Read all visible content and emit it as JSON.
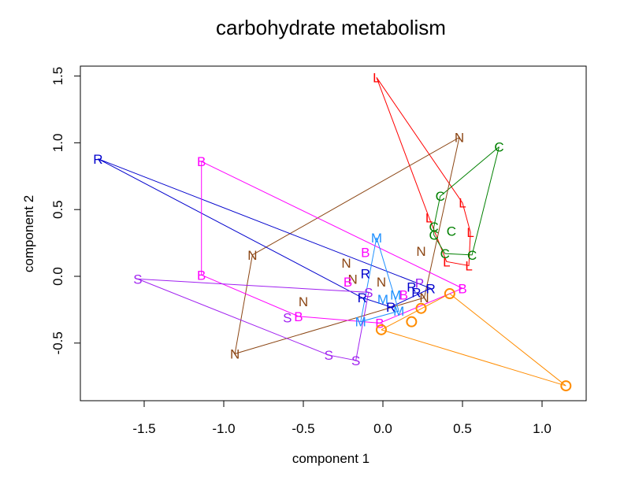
{
  "chart_data": {
    "type": "scatter",
    "title": "carbohydrate metabolism",
    "xlabel": "component 1",
    "ylabel": "component 2",
    "xlim": [
      -1.9,
      1.3
    ],
    "ylim": [
      -0.95,
      1.58
    ],
    "xticks": [
      -1.5,
      -1.0,
      -0.5,
      0.0,
      0.5,
      1.0
    ],
    "xtick_labels": [
      "-1.5",
      "-1.0",
      "-0.5",
      "0.0",
      "0.5",
      "1.0"
    ],
    "yticks": [
      -0.5,
      0.0,
      0.5,
      1.0,
      1.5
    ],
    "ytick_labels": [
      "-0.5",
      "0.0",
      "0.5",
      "1.0",
      "1.5"
    ],
    "grid": false,
    "legend": "none",
    "series": [
      {
        "name": "L",
        "marker": "L",
        "color": "#ff0000",
        "points": [
          [
            -0.04,
            1.49
          ],
          [
            0.5,
            0.55
          ],
          [
            0.55,
            0.33
          ],
          [
            0.54,
            0.08
          ],
          [
            0.4,
            0.11
          ],
          [
            0.29,
            0.44
          ]
        ],
        "path_order": [
          0,
          1,
          2,
          3,
          4,
          5,
          0
        ]
      },
      {
        "name": "C",
        "marker": "C",
        "color": "#008000",
        "points": [
          [
            0.73,
            0.97
          ],
          [
            0.36,
            0.6
          ],
          [
            0.32,
            0.37
          ],
          [
            0.32,
            0.31
          ],
          [
            0.39,
            0.17
          ],
          [
            0.56,
            0.16
          ],
          [
            0.43,
            0.34
          ]
        ],
        "path_order": [
          0,
          1,
          2,
          3,
          4,
          5,
          0
        ]
      },
      {
        "name": "N",
        "marker": "N",
        "color": "#8b4513",
        "points": [
          [
            0.48,
            1.04
          ],
          [
            -0.82,
            0.16
          ],
          [
            -0.93,
            -0.58
          ],
          [
            -0.5,
            -0.19
          ],
          [
            -0.23,
            0.1
          ],
          [
            -0.19,
            -0.02
          ],
          [
            -0.01,
            -0.04
          ],
          [
            0.24,
            0.19
          ],
          [
            0.26,
            -0.16
          ]
        ],
        "path_order": [
          8,
          0,
          1,
          2,
          8
        ]
      },
      {
        "name": "R",
        "marker": "R",
        "color": "#0000cd",
        "points": [
          [
            -1.79,
            0.88
          ],
          [
            -0.11,
            0.02
          ],
          [
            -0.13,
            -0.16
          ],
          [
            0.05,
            -0.23
          ],
          [
            0.18,
            -0.08
          ],
          [
            0.3,
            -0.09
          ],
          [
            0.21,
            -0.12
          ]
        ],
        "path_order": [
          0,
          5,
          3,
          2,
          0
        ]
      },
      {
        "name": "B",
        "marker": "B",
        "color": "#ff00ff",
        "points": [
          [
            -1.14,
            0.86
          ],
          [
            -1.14,
            0.01
          ],
          [
            -0.53,
            -0.3
          ],
          [
            -0.11,
            0.18
          ],
          [
            -0.22,
            -0.04
          ],
          [
            0.13,
            -0.14
          ],
          [
            -0.02,
            -0.35
          ],
          [
            0.5,
            -0.09
          ]
        ],
        "path_order": [
          0,
          1,
          2,
          6,
          7,
          0
        ]
      },
      {
        "name": "S",
        "marker": "S",
        "color": "#a020f0",
        "points": [
          [
            -1.54,
            -0.02
          ],
          [
            -0.6,
            -0.31
          ],
          [
            -0.34,
            -0.59
          ],
          [
            -0.17,
            -0.63
          ],
          [
            -0.09,
            -0.12
          ]
        ],
        "path_order": [
          0,
          2,
          3,
          4,
          0
        ]
      },
      {
        "name": "M",
        "marker": "M",
        "color": "#1e90ff",
        "points": [
          [
            -0.04,
            0.29
          ],
          [
            0.0,
            -0.17
          ],
          [
            -0.14,
            -0.34
          ],
          [
            0.1,
            -0.26
          ],
          [
            0.08,
            -0.14
          ]
        ],
        "path_order": [
          0,
          2,
          3,
          0
        ]
      },
      {
        "name": "P",
        "marker": "P",
        "color": "#a020f0",
        "points": [
          [
            0.23,
            -0.05
          ]
        ],
        "path_order": []
      },
      {
        "name": "O",
        "marker": "circle",
        "color": "#ff8c00",
        "points": [
          [
            -0.01,
            -0.4
          ],
          [
            0.18,
            -0.34
          ],
          [
            0.24,
            -0.24
          ],
          [
            0.42,
            -0.13
          ],
          [
            1.15,
            -0.82
          ]
        ],
        "path_order": [
          0,
          4,
          3,
          0
        ]
      }
    ]
  }
}
